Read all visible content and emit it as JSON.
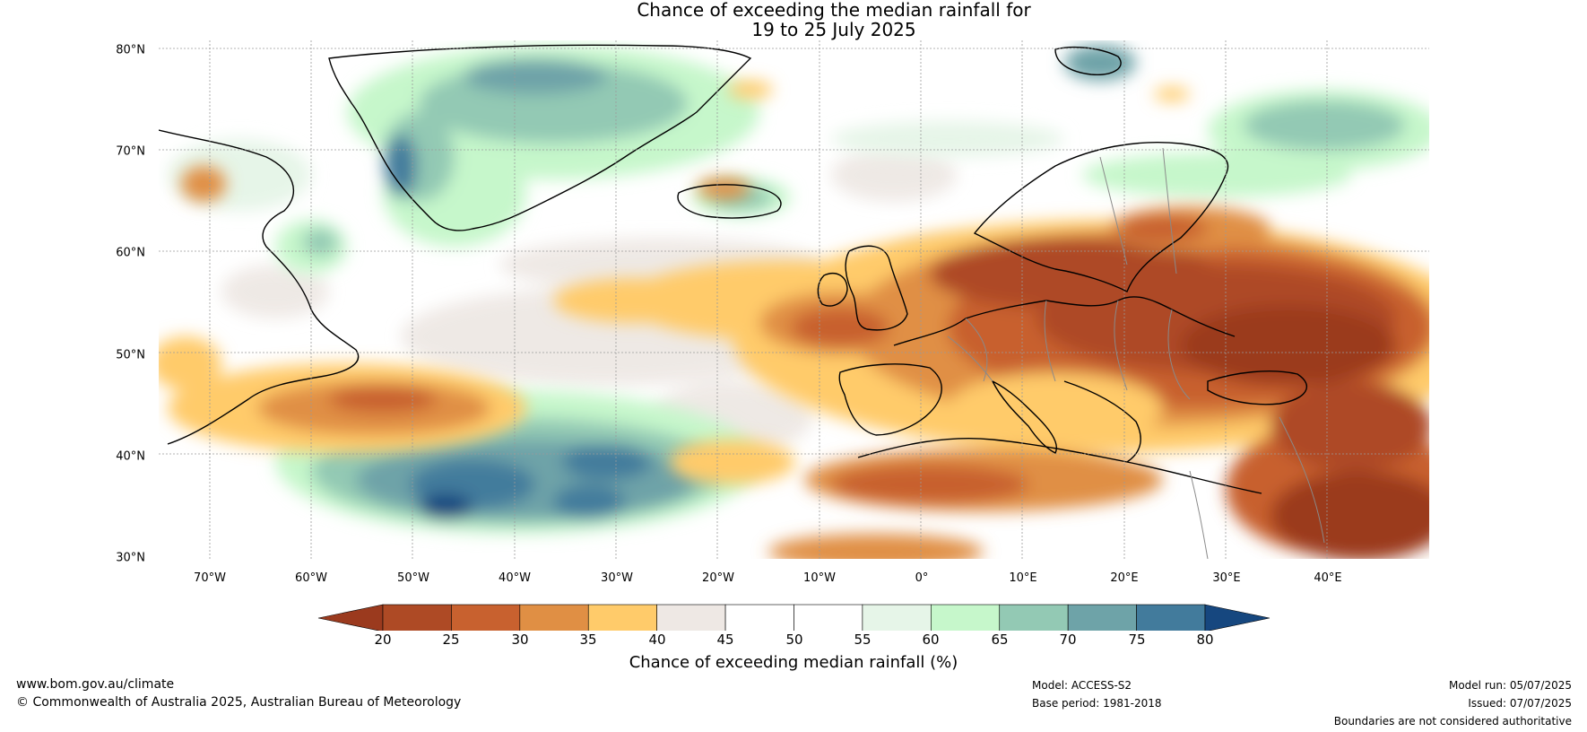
{
  "title_line1": "Chance of exceeding the median rainfall for",
  "title_line2": "19 to 25 July 2025",
  "map": {
    "lon_range": [
      -75,
      50
    ],
    "lat_range": [
      30,
      81
    ],
    "y_ticks": [
      "80°N",
      "70°N",
      "60°N",
      "50°N",
      "40°N",
      "30°N"
    ],
    "x_ticks": [
      "70°W",
      "60°W",
      "50°W",
      "40°W",
      "30°W",
      "20°W",
      "10°W",
      "0°",
      "10°E",
      "20°E",
      "30°E",
      "40°E"
    ],
    "grid": true
  },
  "colorbar": {
    "title": "Chance of exceeding median rainfall (%)",
    "labels": [
      "20",
      "25",
      "30",
      "35",
      "40",
      "45",
      "50",
      "55",
      "60",
      "65",
      "70",
      "75",
      "80"
    ],
    "colors": [
      "#9b3a1e",
      "#ae4a25",
      "#c8612f",
      "#e08f44",
      "#ffcb6a",
      "#eee8e4",
      "#ffffff",
      "#ffffff",
      "#e6f5e8",
      "#c6f7cb",
      "#93c9b4",
      "#6ea3a8",
      "#427b9c",
      "#16477f"
    ],
    "extend": "both"
  },
  "footer": {
    "website": "www.bom.gov.au/climate",
    "copyright": "© Commonwealth of Australia 2025, Australian Bureau of Meteorology",
    "model": "Model: ACCESS-S2",
    "base_period": "Base period: 1981-2018",
    "model_run": "Model run: 05/07/2025",
    "issued": "Issued: 07/07/2025",
    "disclaimer": "Boundaries are not considered authoritative"
  }
}
